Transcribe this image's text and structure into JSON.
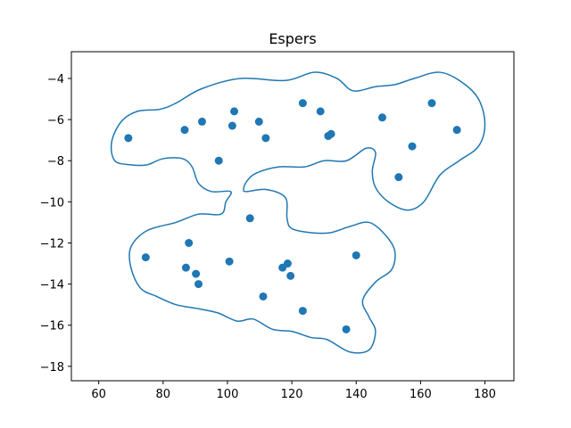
{
  "chart_data": {
    "type": "scatter",
    "title": "Espers",
    "xlabel": "",
    "ylabel": "",
    "xlim": [
      51.5,
      189
    ],
    "ylim": [
      -18.7,
      -2.7
    ],
    "xticks": [
      60,
      80,
      100,
      120,
      140,
      160,
      180
    ],
    "yticks": [
      -18,
      -16,
      -14,
      -12,
      -10,
      -8,
      -6,
      -4
    ],
    "grid": false,
    "colors": {
      "series": "#1f77b4",
      "axes": "#000000"
    },
    "series": [
      {
        "values": [
          [
            69.2,
            -6.9
          ],
          [
            86.7,
            -6.5
          ],
          [
            92.1,
            -6.1
          ],
          [
            97.3,
            -8.0
          ],
          [
            101.5,
            -6.3
          ],
          [
            102.1,
            -5.6
          ],
          [
            109.8,
            -6.1
          ],
          [
            111.9,
            -6.9
          ],
          [
            123.4,
            -5.2
          ],
          [
            128.9,
            -5.6
          ],
          [
            131.3,
            -6.8
          ],
          [
            132.2,
            -6.7
          ],
          [
            148.1,
            -5.9
          ],
          [
            157.4,
            -7.3
          ],
          [
            163.5,
            -5.2
          ],
          [
            171.3,
            -6.5
          ],
          [
            153.2,
            -8.8
          ],
          [
            107.0,
            -10.8
          ],
          [
            74.6,
            -12.7
          ],
          [
            88.0,
            -12.0
          ],
          [
            87.1,
            -13.2
          ],
          [
            90.2,
            -13.5
          ],
          [
            91.0,
            -14.0
          ],
          [
            100.6,
            -12.9
          ],
          [
            111.1,
            -14.6
          ],
          [
            117.1,
            -13.2
          ],
          [
            118.7,
            -13.0
          ],
          [
            119.6,
            -13.6
          ],
          [
            123.4,
            -15.3
          ],
          [
            136.9,
            -16.2
          ],
          [
            140.0,
            -12.6
          ]
        ]
      }
    ],
    "boundaries": [
      {
        "points": [
          [
            64,
            -7.1
          ],
          [
            67,
            -6.1
          ],
          [
            72,
            -5.6
          ],
          [
            79,
            -5.5
          ],
          [
            84,
            -5.2
          ],
          [
            92,
            -4.5
          ],
          [
            104,
            -4.0
          ],
          [
            118,
            -4.1
          ],
          [
            127,
            -3.7
          ],
          [
            134,
            -4.0
          ],
          [
            139,
            -4.6
          ],
          [
            146,
            -4.4
          ],
          [
            152,
            -4.3
          ],
          [
            158,
            -4.0
          ],
          [
            166,
            -3.7
          ],
          [
            173,
            -4.2
          ],
          [
            178,
            -5.0
          ],
          [
            180,
            -6.2
          ],
          [
            178,
            -7.3
          ],
          [
            172,
            -8.0
          ],
          [
            166,
            -8.7
          ],
          [
            161,
            -10.0
          ],
          [
            156,
            -10.4
          ],
          [
            150,
            -10.0
          ],
          [
            146,
            -9.3
          ],
          [
            145,
            -8.5
          ],
          [
            146,
            -7.6
          ],
          [
            143,
            -7.4
          ],
          [
            137,
            -8.0
          ],
          [
            130,
            -8.0
          ],
          [
            124,
            -8.3
          ],
          [
            116,
            -8.3
          ],
          [
            109,
            -8.6
          ],
          [
            106,
            -9.0
          ],
          [
            105,
            -9.4
          ],
          [
            106,
            -9.5
          ],
          [
            112,
            -9.4
          ],
          [
            118,
            -9.8
          ],
          [
            118.5,
            -10.8
          ],
          [
            120,
            -11.3
          ],
          [
            126,
            -11.5
          ],
          [
            132,
            -11.5
          ],
          [
            138,
            -11.2
          ],
          [
            144,
            -11.0
          ],
          [
            149,
            -11.6
          ],
          [
            152,
            -12.4
          ],
          [
            151,
            -13.3
          ],
          [
            146,
            -13.9
          ],
          [
            142,
            -14.8
          ],
          [
            144,
            -15.6
          ],
          [
            146,
            -16.3
          ],
          [
            144,
            -17.2
          ],
          [
            138,
            -17.3
          ],
          [
            131,
            -16.7
          ],
          [
            126,
            -16.6
          ],
          [
            120,
            -16.3
          ],
          [
            114,
            -16.2
          ],
          [
            108,
            -15.7
          ],
          [
            103,
            -15.8
          ],
          [
            97,
            -15.4
          ],
          [
            91,
            -15.2
          ],
          [
            84,
            -15.0
          ],
          [
            78,
            -14.6
          ],
          [
            73,
            -14.2
          ],
          [
            70,
            -13.2
          ],
          [
            70,
            -12.2
          ],
          [
            75,
            -11.4
          ],
          [
            84,
            -11.0
          ],
          [
            91,
            -10.6
          ],
          [
            98,
            -10.6
          ],
          [
            99.5,
            -10.0
          ],
          [
            101,
            -9.5
          ],
          [
            95,
            -9.5
          ],
          [
            91,
            -9.1
          ],
          [
            89,
            -8.3
          ],
          [
            86,
            -7.9
          ],
          [
            80,
            -7.9
          ],
          [
            75,
            -8.2
          ],
          [
            70,
            -8.2
          ],
          [
            65,
            -8.0
          ],
          [
            64,
            -7.1
          ]
        ]
      }
    ]
  }
}
